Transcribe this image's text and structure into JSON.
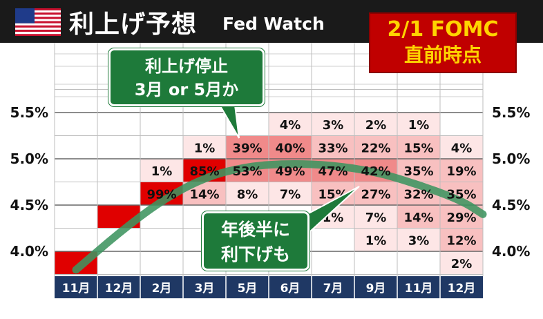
{
  "header": {
    "title": "利上げ予想",
    "subtitle": "Fed Watch",
    "flag_icon": "us-flag-icon",
    "fomc_line1": "2/1 FOMC",
    "fomc_line2": "直前時点"
  },
  "callouts": {
    "top": {
      "line1": "利上げ停止",
      "line2": "3月 or 5月か"
    },
    "bottom": {
      "line1": "年後半に",
      "line2": "利下げも"
    }
  },
  "chart_data": {
    "type": "heatmap",
    "title": "利上げ予想",
    "x_categories": [
      "11月",
      "12月",
      "2月",
      "3月",
      "5月",
      "6月",
      "7月",
      "9月",
      "11月",
      "12月"
    ],
    "y_tick_labels": [
      "5.5%",
      "5.0%",
      "4.5%",
      "4.0%"
    ],
    "y_ticks": [
      5.5,
      5.0,
      4.5,
      4.0
    ],
    "ylim": [
      3.75,
      5.75
    ],
    "rows_rate_bands": [
      5.375,
      5.125,
      4.875,
      4.625,
      4.375,
      4.125,
      3.875
    ],
    "cells": [
      {
        "col": 2,
        "band": 4.625,
        "value": "99%"
      },
      {
        "col": 2,
        "band": 4.875,
        "value": "1%"
      },
      {
        "col": 3,
        "band": 4.625,
        "value": "14%"
      },
      {
        "col": 3,
        "band": 4.875,
        "value": "85%"
      },
      {
        "col": 3,
        "band": 5.125,
        "value": "1%"
      },
      {
        "col": 4,
        "band": 4.625,
        "value": "8%"
      },
      {
        "col": 4,
        "band": 4.875,
        "value": "53%"
      },
      {
        "col": 4,
        "band": 5.125,
        "value": "39%"
      },
      {
        "col": 5,
        "band": 4.625,
        "value": "7%"
      },
      {
        "col": 5,
        "band": 4.875,
        "value": "49%"
      },
      {
        "col": 5,
        "band": 5.125,
        "value": "40%"
      },
      {
        "col": 5,
        "band": 5.375,
        "value": "4%"
      },
      {
        "col": 6,
        "band": 4.375,
        "value": "1%"
      },
      {
        "col": 6,
        "band": 4.625,
        "value": "15%"
      },
      {
        "col": 6,
        "band": 4.875,
        "value": "47%"
      },
      {
        "col": 6,
        "band": 5.125,
        "value": "33%"
      },
      {
        "col": 6,
        "band": 5.375,
        "value": "3%"
      },
      {
        "col": 7,
        "band": 4.125,
        "value": "1%"
      },
      {
        "col": 7,
        "band": 4.375,
        "value": "7%"
      },
      {
        "col": 7,
        "band": 4.625,
        "value": "27%"
      },
      {
        "col": 7,
        "band": 4.875,
        "value": "42%"
      },
      {
        "col": 7,
        "band": 5.125,
        "value": "22%"
      },
      {
        "col": 7,
        "band": 5.375,
        "value": "2%"
      },
      {
        "col": 8,
        "band": 4.125,
        "value": "3%"
      },
      {
        "col": 8,
        "band": 4.375,
        "value": "14%"
      },
      {
        "col": 8,
        "band": 4.625,
        "value": "32%"
      },
      {
        "col": 8,
        "band": 4.875,
        "value": "35%"
      },
      {
        "col": 8,
        "band": 5.125,
        "value": "15%"
      },
      {
        "col": 8,
        "band": 5.375,
        "value": "1%"
      },
      {
        "col": 9,
        "band": 3.875,
        "value": "2%"
      },
      {
        "col": 9,
        "band": 4.125,
        "value": "12%"
      },
      {
        "col": 9,
        "band": 4.375,
        "value": "29%"
      },
      {
        "col": 9,
        "band": 4.625,
        "value": "35%"
      },
      {
        "col": 9,
        "band": 4.875,
        "value": "19%"
      },
      {
        "col": 9,
        "band": 5.125,
        "value": "4%"
      }
    ],
    "realized_blocks": [
      {
        "col": 0,
        "band": 3.875
      },
      {
        "col": 1,
        "band": 4.375
      },
      {
        "col": 2,
        "band": 4.625
      }
    ],
    "trend_curve": {
      "color": "#3d9460",
      "points": [
        [
          0,
          3.8
        ],
        [
          1,
          4.2
        ],
        [
          2,
          4.55
        ],
        [
          3,
          4.8
        ],
        [
          4,
          4.92
        ],
        [
          5,
          4.95
        ],
        [
          6,
          4.93
        ],
        [
          7,
          4.86
        ],
        [
          8,
          4.72
        ],
        [
          9,
          4.55
        ],
        [
          9.5,
          4.4
        ]
      ]
    },
    "colors": {
      "realized": "#e00000",
      "heat_high": "#f08a8a",
      "heat_mid": "#f8c0c0",
      "heat_low": "#fde6e6",
      "axis_bar": "#1f3864"
    }
  }
}
